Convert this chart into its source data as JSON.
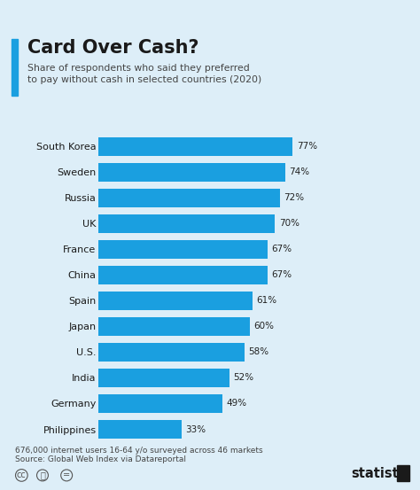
{
  "title": "Card Over Cash?",
  "subtitle": "Share of respondents who said they preferred\nto pay without cash in selected countries (2020)",
  "categories": [
    "South Korea",
    "Sweden",
    "Russia",
    "UK",
    "France",
    "China",
    "Spain",
    "Japan",
    "U.S.",
    "India",
    "Germany",
    "Philippines"
  ],
  "values": [
    77,
    74,
    72,
    70,
    67,
    67,
    61,
    60,
    58,
    52,
    49,
    33
  ],
  "bar_color": "#1a9fe0",
  "background_color": "#ddeef8",
  "title_color": "#1a1a1a",
  "subtitle_color": "#444444",
  "value_label_color": "#222222",
  "footer_line1": "676,000 internet users 16-64 y/o surveyed across 46 markets",
  "footer_line2": "Source: Global Web Index via Datareportal",
  "xlim": [
    0,
    100
  ],
  "bar_height": 0.72
}
